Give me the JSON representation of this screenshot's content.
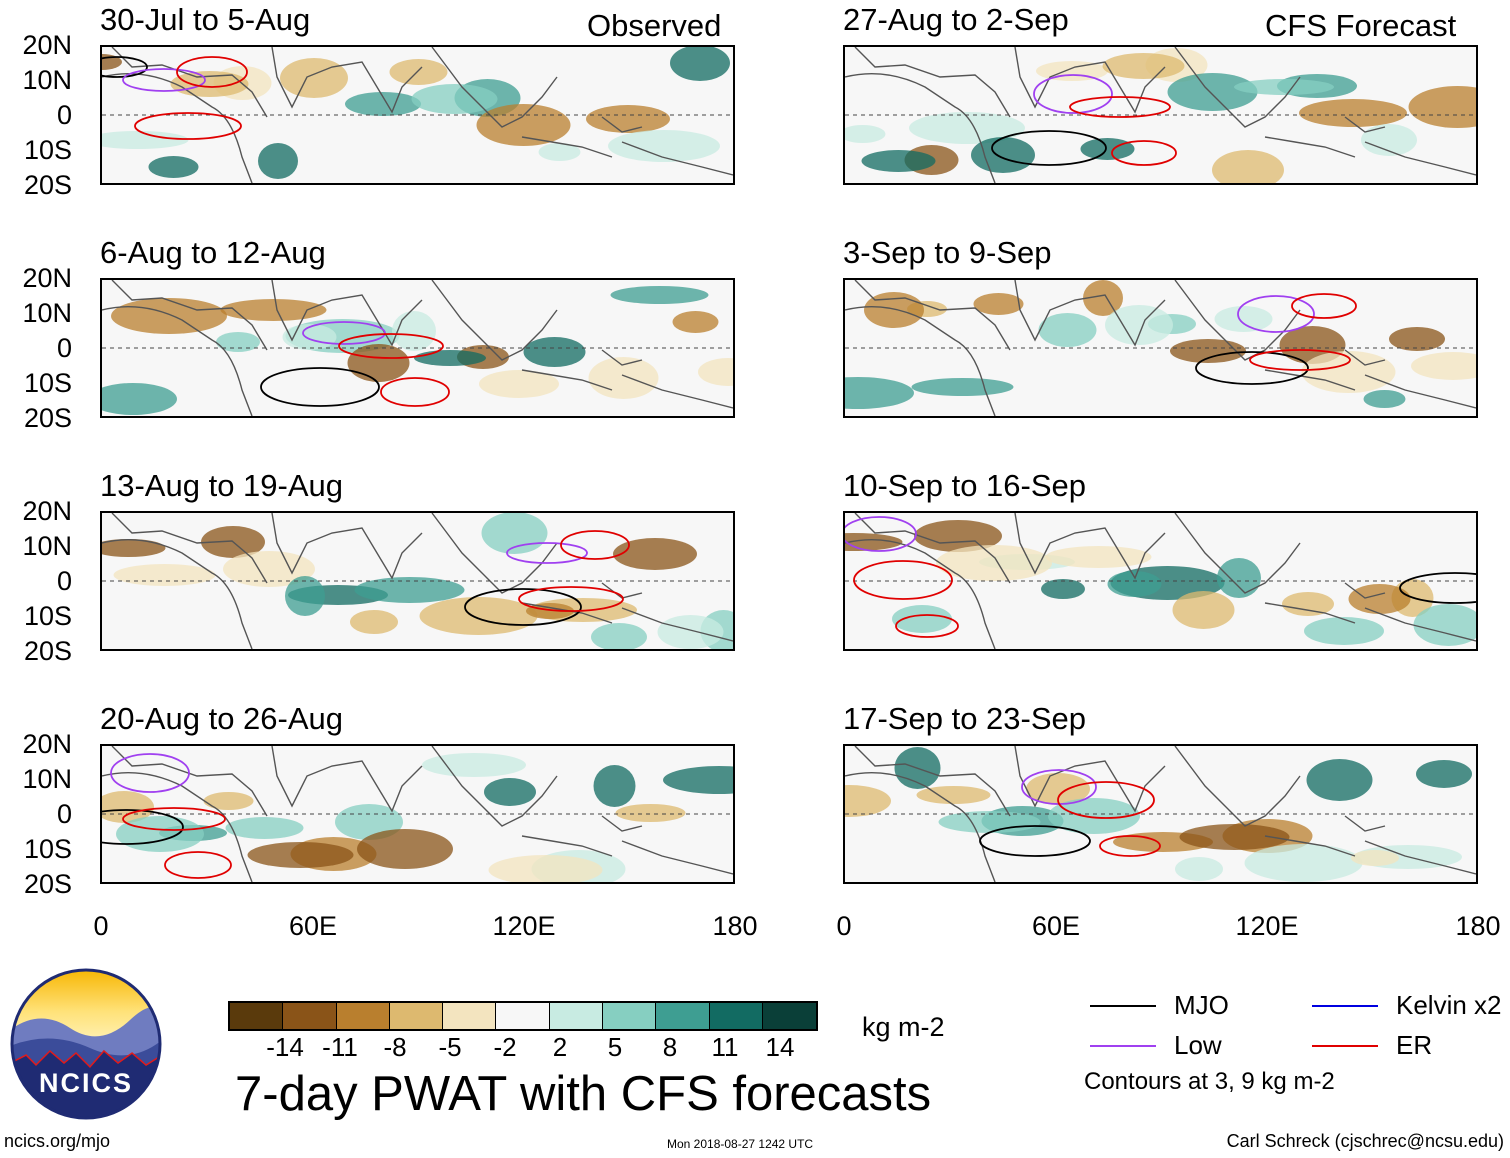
{
  "header": {
    "left_label": "Observed",
    "right_label": "CFS Forecast"
  },
  "panels": {
    "observed": [
      {
        "title": "30-Jul to 5-Aug"
      },
      {
        "title": "6-Aug to 12-Aug"
      },
      {
        "title": "13-Aug to 19-Aug"
      },
      {
        "title": "20-Aug to 26-Aug"
      }
    ],
    "forecast": [
      {
        "title": "27-Aug to 2-Sep"
      },
      {
        "title": "3-Sep to 9-Sep"
      },
      {
        "title": "10-Sep to 16-Sep"
      },
      {
        "title": "17-Sep to 23-Sep"
      }
    ]
  },
  "axes": {
    "lat_labels": [
      "20N",
      "10N",
      "0",
      "10S",
      "20S"
    ],
    "lon_labels": [
      "0",
      "60E",
      "120E",
      "180"
    ]
  },
  "colorbar": {
    "colors": [
      "#5a3a0c",
      "#8a5418",
      "#b97f2e",
      "#ddb96f",
      "#f3e4bf",
      "#f7f7f7",
      "#c8ebe2",
      "#86cfc1",
      "#3e9e92",
      "#126b62",
      "#0a3f38"
    ],
    "ticks": [
      "-14",
      "-11",
      "-8",
      "-5",
      "-2",
      "2",
      "5",
      "8",
      "11",
      "14"
    ],
    "units": "kg m-2"
  },
  "title": "7-day PWAT with CFS forecasts",
  "legend": {
    "items": [
      {
        "label": "MJO",
        "color": "#000000"
      },
      {
        "label": "Kelvin x2",
        "color": "#0000e0"
      },
      {
        "label": "Low",
        "color": "#a040f0"
      },
      {
        "label": "ER",
        "color": "#e00000"
      }
    ],
    "note": "Contours at 3, 9 kg m-2"
  },
  "logo": {
    "text": "NCICS"
  },
  "footer": {
    "site": "ncics.org/mjo",
    "timestamp": "Mon 2018-08-27 1242 UTC",
    "credit": "Carl Schreck (cjschrec@ncsu.edu)"
  }
}
